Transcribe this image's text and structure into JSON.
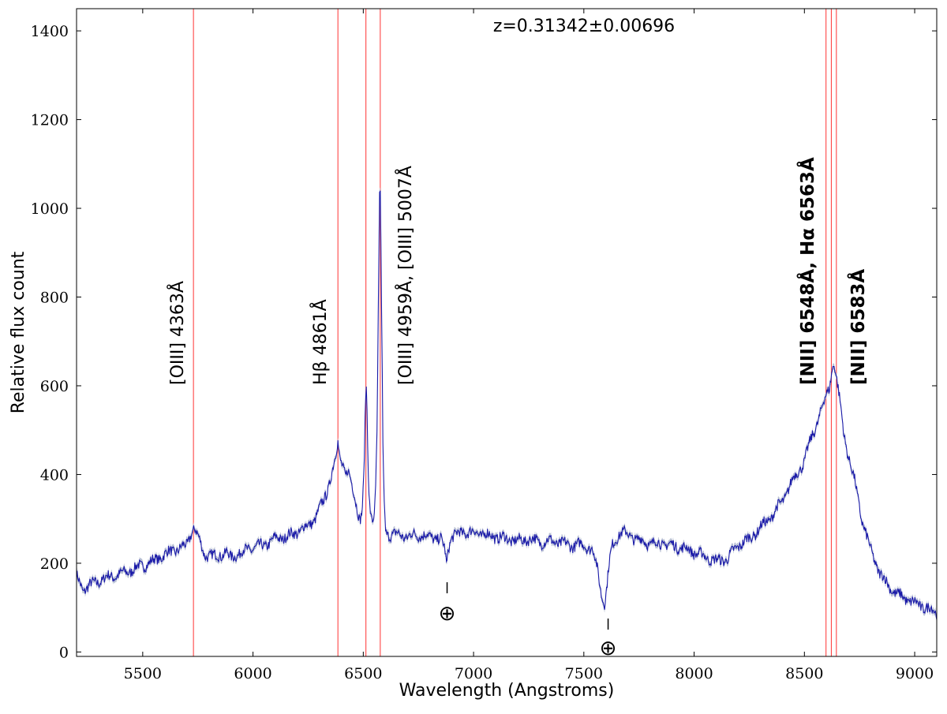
{
  "chart_data": {
    "type": "line",
    "title": "",
    "annotation_redshift": "z=0.31342±0.00696",
    "xlabel": "Wavelength (Angstroms)",
    "ylabel": "Relative flux count",
    "xlim": [
      5200,
      9100
    ],
    "ylim": [
      -10,
      1450
    ],
    "xticks": [
      5500,
      6000,
      6500,
      7000,
      7500,
      8000,
      8500,
      9000
    ],
    "yticks": [
      0,
      200,
      400,
      600,
      800,
      1000,
      1200,
      1400
    ],
    "grid": false,
    "colors": {
      "spectrum": "#1a1aa8",
      "error_band": "#b7bfd3",
      "lines": "#ff3333"
    },
    "emission_line_markers": [
      5730,
      6385,
      6512,
      6577,
      8598,
      8622,
      8645
    ],
    "series": [
      {
        "x": [
          5200,
          5230,
          5260,
          5300,
          5350,
          5400,
          5450,
          5500,
          5550,
          5600,
          5650,
          5700,
          5720,
          5735,
          5750,
          5780,
          5830,
          5880,
          5900,
          5920,
          5950,
          6000,
          6050,
          6100,
          6150,
          6200,
          6250,
          6280,
          6300,
          6320,
          6340,
          6360,
          6375,
          6385,
          6392,
          6400,
          6410,
          6420,
          6430,
          6440,
          6455,
          6470,
          6485,
          6495,
          6503,
          6510,
          6513,
          6517,
          6525,
          6535,
          6545,
          6555,
          6563,
          6570,
          6575,
          6578,
          6582,
          6590,
          6600,
          6620,
          6650,
          6700,
          6750,
          6800,
          6850,
          6870,
          6878,
          6885,
          6900,
          6950,
          7000,
          7050,
          7100,
          7150,
          7200,
          7250,
          7300,
          7350,
          7400,
          7450,
          7500,
          7540,
          7560,
          7580,
          7595,
          7605,
          7615,
          7630,
          7650,
          7670,
          7700,
          7750,
          7800,
          7850,
          7900,
          7950,
          8000,
          8050,
          8100,
          8150,
          8200,
          8250,
          8300,
          8350,
          8400,
          8450,
          8500,
          8530,
          8560,
          8580,
          8600,
          8615,
          8625,
          8635,
          8650,
          8665,
          8680,
          8700,
          8730,
          8760,
          8800,
          8840,
          8880,
          8920,
          8960,
          9000,
          9050,
          9100
        ],
        "y": [
          170,
          140,
          150,
          160,
          170,
          175,
          185,
          195,
          205,
          220,
          230,
          240,
          270,
          280,
          260,
          220,
          215,
          225,
          210,
          220,
          225,
          235,
          240,
          255,
          260,
          270,
          285,
          300,
          320,
          340,
          370,
          410,
          440,
          470,
          440,
          430,
          420,
          400,
          410,
          390,
          360,
          330,
          300,
          320,
          400,
          560,
          605,
          540,
          350,
          305,
          300,
          350,
          520,
          850,
          1070,
          1000,
          820,
          420,
          270,
          265,
          265,
          260,
          265,
          260,
          255,
          230,
          195,
          235,
          260,
          270,
          270,
          265,
          260,
          255,
          250,
          255,
          248,
          250,
          245,
          240,
          242,
          230,
          190,
          130,
          110,
          150,
          200,
          240,
          260,
          270,
          265,
          252,
          245,
          245,
          240,
          235,
          225,
          215,
          205,
          210,
          240,
          255,
          280,
          305,
          340,
          390,
          430,
          480,
          520,
          550,
          580,
          600,
          640,
          650,
          600,
          550,
          490,
          440,
          380,
          300,
          230,
          180,
          150,
          130,
          120,
          110,
          100,
          90
        ]
      }
    ],
    "line_labels": [
      {
        "text": "[OIII] 4363Å",
        "bold": false
      },
      {
        "text": "Hβ 4861Å",
        "bold": false
      },
      {
        "text": "[OIII] 4959Å, [OIII] 5007Å",
        "bold": false
      },
      {
        "text": "[NII] 6548Å, Hα 6563Å",
        "bold": true
      },
      {
        "text": "[NII] 6583Å",
        "bold": true
      }
    ],
    "telluric_marks": [
      {
        "x": 6880,
        "symbol": "⊕"
      },
      {
        "x": 7610,
        "symbol": "⊕"
      }
    ]
  }
}
